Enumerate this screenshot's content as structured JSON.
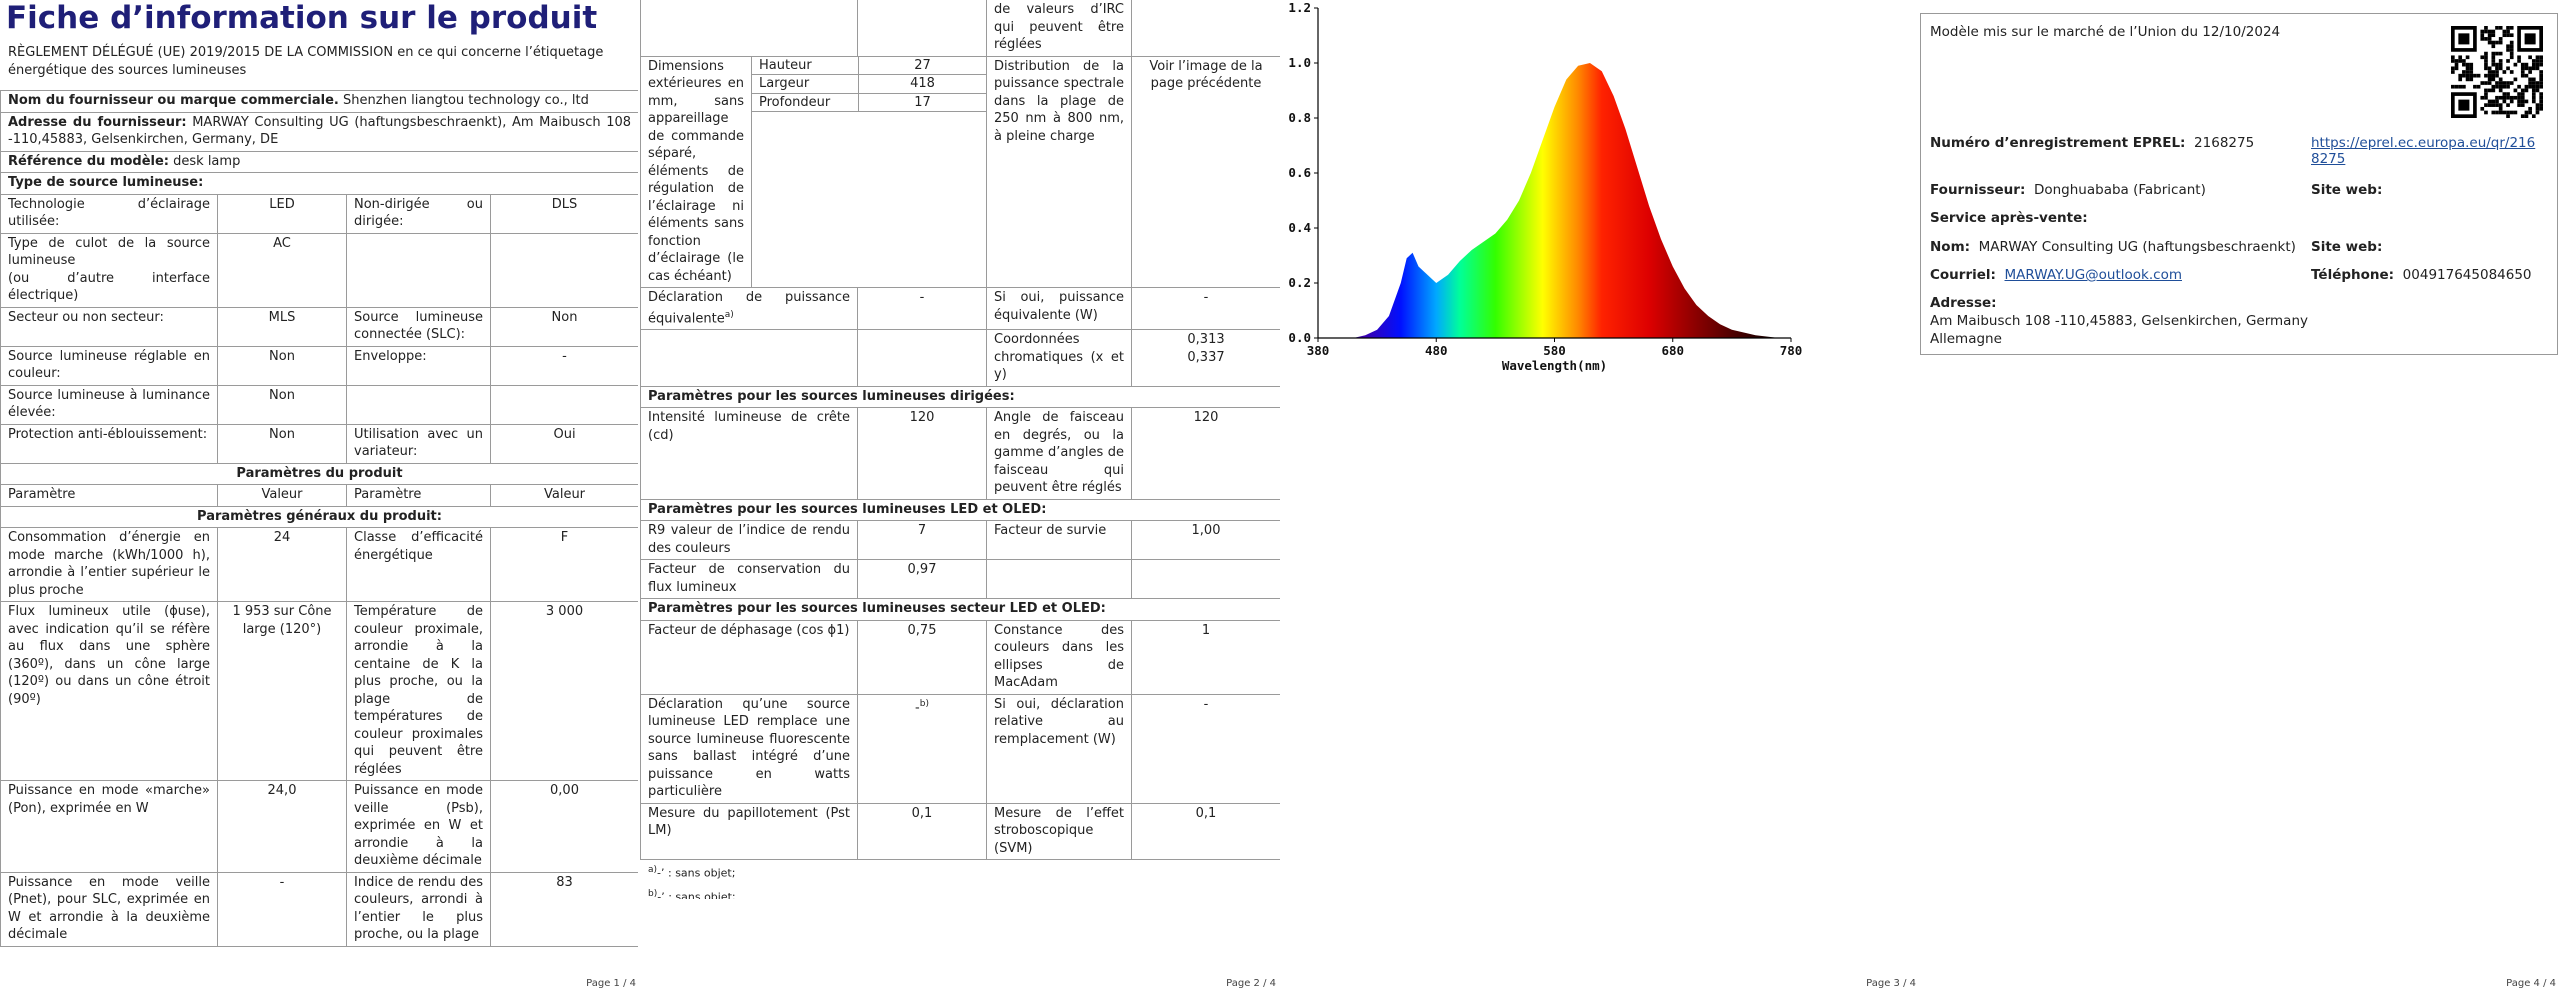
{
  "chart_data": {
    "type": "area",
    "xlabel": "Wavelength(nm)",
    "x": [
      380,
      390,
      400,
      410,
      420,
      430,
      440,
      450,
      455,
      460,
      465,
      470,
      480,
      490,
      500,
      510,
      520,
      530,
      540,
      550,
      560,
      570,
      580,
      590,
      600,
      610,
      620,
      630,
      640,
      650,
      660,
      670,
      680,
      690,
      700,
      710,
      720,
      730,
      740,
      750,
      760,
      770,
      780
    ],
    "values": [
      0,
      0,
      0,
      0,
      0.01,
      0.03,
      0.08,
      0.2,
      0.29,
      0.31,
      0.26,
      0.24,
      0.2,
      0.23,
      0.28,
      0.32,
      0.35,
      0.38,
      0.43,
      0.5,
      0.6,
      0.72,
      0.84,
      0.94,
      0.99,
      1.0,
      0.97,
      0.88,
      0.76,
      0.62,
      0.48,
      0.36,
      0.26,
      0.18,
      0.12,
      0.08,
      0.05,
      0.03,
      0.02,
      0.01,
      0.005,
      0,
      0
    ],
    "xlim": [
      380,
      780
    ],
    "ylim": [
      0,
      1.2
    ],
    "xticks": [
      380,
      480,
      580,
      680,
      780
    ],
    "yticks": [
      {
        "value": 0,
        "label": "0.0"
      },
      0.2,
      0.4,
      0.6,
      0.8,
      {
        "value": 1,
        "label": "1.0"
      },
      1.2
    ]
  },
  "page1": {
    "title": "Fiche d’information sur le produit",
    "regulation": "RÈGLEMENT DÉLÉGUÉ (UE) 2019/2015 DE LA COMMISSION en ce qui concerne l’étiquetage énergétique des sources lumineuses",
    "rows": [
      {
        "label": "Nom du fournisseur ou marque commerciale.",
        "value": "Shenzhen liangtou technology co., ltd"
      },
      {
        "label": "Adresse du fournisseur:",
        "value": "MARWAY Consulting UG (haftungsbeschraenkt), Am Maibusch 108 -110,45883, Gelsenkirchen, Germany, DE"
      },
      {
        "label": "Référence du modèle:",
        "value": "desk lamp"
      },
      {
        "section": "Type de source lumineuse:"
      },
      {
        "cells": [
          "Technologie d’éclairage utilisée:",
          "LED",
          "Non-dirigée ou dirigée:",
          "DLS"
        ]
      },
      {
        "cells": [
          "Type de culot de la source lumineuse\n(ou d’autre interface électrique)",
          "AC",
          null,
          null
        ]
      },
      {
        "cells": [
          "Secteur ou non secteur:",
          "MLS",
          "Source lumineuse connectée (SLC):",
          "Non"
        ]
      },
      {
        "cells": [
          "Source lumineuse réglable en couleur:",
          "Non",
          "Enveloppe:",
          "-"
        ]
      },
      {
        "cells": [
          "Source lumineuse à luminance élevée:",
          "Non",
          null,
          null
        ]
      },
      {
        "cells": [
          "Protection anti-éblouissement:",
          "Non",
          "Utilisation avec un variateur:",
          "Oui"
        ]
      },
      {
        "heading": "Paramètres du produit"
      },
      {
        "cells": [
          "Paramètre",
          "Valeur",
          "Paramètre",
          "Valeur"
        ]
      },
      {
        "heading": "Paramètres généraux du produit:"
      },
      {
        "cells": [
          "Consommation d’énergie en mode marche (kWh/1000 h), arrondie à l’entier supérieur le plus proche",
          "24",
          "Classe d’efficacité énergétique",
          "F"
        ]
      },
      {
        "cells": [
          "Flux lumineux utile (ϕuse), avec indication qu’il se réfère au flux dans une sphère (360º), dans un cône large (120º) ou dans un cône étroit (90º)",
          "1 953 sur Cône large (120°)",
          "Température de couleur proximale, arrondie à la centaine de K la plus proche, ou la plage de températures de couleur proximales qui peuvent être réglées",
          "3 000"
        ]
      },
      {
        "cells": [
          "Puissance en mode «marche» (Pon), exprimée en W",
          "24,0",
          "Puissance en mode veille (Psb), exprimée en W et arrondie à la deuxième décimale",
          "0,00"
        ]
      },
      {
        "cells": [
          "Puissance en mode veille (Pnet), pour SLC, exprimée en W et arrondie à la deuxième décimale",
          "-",
          "Indice de rendu des couleurs, arrondi à l’entier le plus proche, ou la plage",
          "83"
        ]
      }
    ],
    "footer": "Page 1 / 4"
  },
  "page2": {
    "rows": [
      {
        "cells": [
          null,
          null,
          "de valeurs d’IRC qui peuvent être réglées",
          null
        ]
      },
      {
        "cells": [
          "Dimensions extérieures en mm, sans appareillage de commande séparé, éléments de régulation de l’éclairage ni éléments sans fonction d’éclairage (le cas échéant)",
          null,
          "Distribution de la puissance spectrale dans la plage de 250 nm à 800 nm, à pleine charge",
          "Voir l’image de la page précédente"
        ],
        "dims": [
          {
            "name": "Hauteur",
            "value": 27
          },
          {
            "name": "Largeur",
            "value": 418
          },
          {
            "name": "Profondeur",
            "value": 17
          }
        ]
      },
      {
        "cells": [
          {
            "text": "Déclaration de puissance équivalente",
            "sup": "a)"
          },
          "-",
          "Si oui, puissance équivalente (W)",
          "-"
        ]
      },
      {
        "cells": [
          null,
          null,
          "Coordonnées chromatiques (x et y)",
          "0,313\n0,337"
        ]
      },
      {
        "section": "Paramètres pour les sources lumineuses dirigées:"
      },
      {
        "cells": [
          "Intensité lumineuse de crête (cd)",
          "120",
          "Angle de faisceau en degrés, ou la gamme d’angles de faisceau qui peuvent être réglés",
          "120"
        ]
      },
      {
        "section": "Paramètres pour les sources lumineuses LED et OLED:"
      },
      {
        "cells": [
          "R9 valeur de l’indice de rendu des couleurs",
          "7",
          "Facteur de survie",
          "1,00"
        ]
      },
      {
        "cells": [
          "Facteur de conservation du flux lumineux",
          "0,97",
          null,
          null
        ]
      },
      {
        "section": "Paramètres pour les sources lumineuses secteur LED et OLED:"
      },
      {
        "cells": [
          "Facteur de déphasage (cos ϕ1)",
          "0,75",
          "Constance des couleurs dans les ellipses de MacAdam",
          "1"
        ]
      },
      {
        "cells": [
          "Déclaration qu’une source lumineuse LED remplace une source lumineuse fluorescente sans ballast intégré d’une puissance en watts particulière",
          {
            "text": "-",
            "sup": "b)"
          },
          "Si oui, déclaration relative au remplacement (W)",
          "-"
        ]
      },
      {
        "cells": [
          "Mesure du papillotement (Pst LM)",
          "0,1",
          "Mesure de l’effet stroboscopique (SVM)",
          "0,1"
        ]
      }
    ],
    "notes": [
      {
        "sup": "a)",
        "text": "-’ : sans objet;"
      },
      {
        "sup": "b)",
        "text": "-’ : sans objet;"
      }
    ],
    "footer": "Page 2 / 4"
  },
  "page3": {
    "footer": "Page 3 / 4"
  },
  "page4": {
    "market": "Modèle mis sur le marché de l’Union du 12/10/2024",
    "eprel_label": "Numéro d’enregistrement EPREL:",
    "eprel_number": "2168275",
    "eprel_link": "https://eprel.ec.europa.eu/qr/2168275",
    "supplier_label": "Fournisseur:",
    "supplier": "Donghuababa (Fabricant)",
    "website_label": "Site web:",
    "service_label": "Service après-vente:",
    "name_label": "Nom:",
    "name": "MARWAY Consulting UG (haftungsbeschraenkt)",
    "service_website_label": "Site web:",
    "email_label": "Courriel:",
    "email": "MARWAY.UG@outlook.com",
    "phone_label": "Téléphone:",
    "phone": "004917645084650",
    "address_label": "Adresse:",
    "address": "Am Maibusch 108 -110,45883, Gelsenkirchen, Germany",
    "country": "Allemagne",
    "footer": "Page 4 / 4"
  }
}
